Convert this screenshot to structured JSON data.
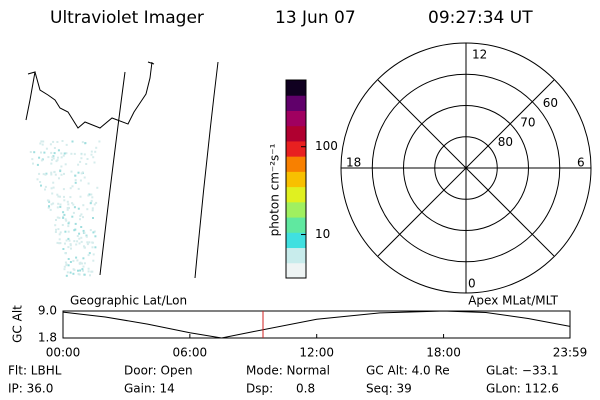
{
  "header": {
    "title": "Ultraviolet Imager",
    "date": "13 Jun 07",
    "time": "09:27:34 UT"
  },
  "colorbar": {
    "label": "photon cm⁻²s⁻¹",
    "log": true,
    "clim": [
      3.2,
      575
    ],
    "ticks": [
      10,
      100
    ],
    "colors": [
      "#eef4f4",
      "#c8ecec",
      "#40e0e0",
      "#60e8a0",
      "#a0f060",
      "#e0f020",
      "#f8c000",
      "#f88000",
      "#e82020",
      "#b00030",
      "#a00060",
      "#60006a",
      "#100020"
    ]
  },
  "polar": {
    "lat_lim": [
      90,
      50
    ],
    "lat_ticks": [
      80,
      70,
      60
    ],
    "mlt_labels": {
      "top": "12",
      "right": "6",
      "bottom": "0",
      "left": "18"
    }
  },
  "chart_data": {
    "type": "line",
    "xlabel_left": "Geographic Lat/Lon",
    "xlabel_right": "Apex MLat/MLT",
    "ylabel": "GC Alt",
    "x": [
      0,
      2,
      4,
      6,
      7.5,
      9,
      12,
      15,
      18,
      20,
      22,
      23.98
    ],
    "values": [
      8.7,
      7.4,
      5.5,
      3.2,
      1.8,
      3.5,
      6.8,
      8.5,
      9.0,
      8.6,
      7.0,
      4.9
    ],
    "color": "#000000",
    "marker_time": 9.46,
    "marker_color": "#d02020",
    "xlim": [
      0,
      23.98
    ],
    "ylim": [
      1.8,
      9
    ],
    "xticks": [
      {
        "value": 0,
        "label": "00:00"
      },
      {
        "value": 6,
        "label": "06:00"
      },
      {
        "value": 12,
        "label": "12:00"
      },
      {
        "value": 18,
        "label": "18:00"
      },
      {
        "value": 23.98,
        "label": "23:59"
      }
    ],
    "yticks": [
      1.8,
      {
        "value": 9,
        "label": "9.0"
      }
    ]
  },
  "footer": {
    "rows": [
      [
        "Flt: LBHL",
        "Door: Open",
        "Mode: Normal",
        "GC Alt: 4.0 Re",
        "GLat: −33.1"
      ],
      [
        "IP: 36.0",
        "Gain: 14",
        "Dsp:      0.8",
        "Seq: 39",
        "GLon: 112.6"
      ]
    ]
  }
}
